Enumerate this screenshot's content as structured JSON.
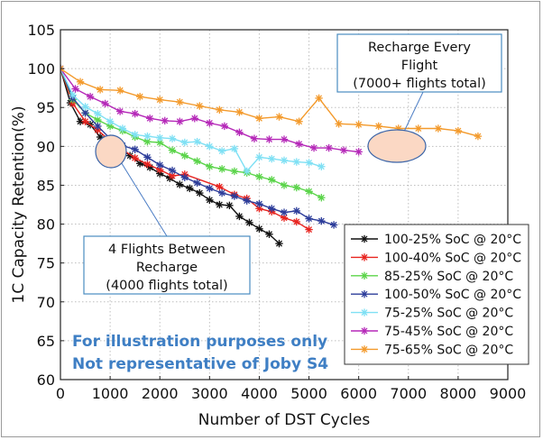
{
  "chart_data": {
    "type": "line",
    "xlabel": "Number of DST Cycles",
    "ylabel": "1C Capacity Retention(%)",
    "xlim": [
      0,
      9000
    ],
    "ylim": [
      60,
      105
    ],
    "xticks": [
      "0",
      "1000",
      "2000",
      "3000",
      "4000",
      "5000",
      "6000",
      "7000",
      "8000",
      "9000"
    ],
    "yticks": [
      "60",
      "65",
      "70",
      "75",
      "80",
      "85",
      "90",
      "95",
      "100",
      "105"
    ],
    "grid": true,
    "legend_position": "bottom-right",
    "series": [
      {
        "name": "100-25% SoC @ 20°C",
        "color": "#111111",
        "x": [
          0,
          200,
          400,
          600,
          800,
          1000,
          1200,
          1400,
          1600,
          1800,
          2000,
          2200,
          2400,
          2600,
          2800,
          3000,
          3200,
          3400,
          3600,
          3800,
          4000,
          4200,
          4400
        ],
        "y": [
          100,
          95.6,
          93.2,
          92.8,
          91.2,
          90.2,
          89.7,
          88.8,
          87.8,
          87.3,
          86.5,
          85.9,
          85.1,
          84.6,
          84.0,
          83.1,
          82.5,
          82.4,
          81.0,
          80.2,
          79.4,
          78.7,
          77.5
        ]
      },
      {
        "name": "100-40% SoC @ 20°C",
        "color": "#e8241f",
        "x": [
          0,
          250,
          500,
          750,
          1000,
          1250,
          1500,
          1750,
          2000,
          2250,
          2500,
          3200,
          3500,
          3750,
          4000,
          4250,
          4500,
          4750,
          5000
        ],
        "y": [
          100,
          95.5,
          93.2,
          92.1,
          90.7,
          89.6,
          88.5,
          87.7,
          87.0,
          86.2,
          86.4,
          84.8,
          83.8,
          83.3,
          82.0,
          81.6,
          80.8,
          80.3,
          79.3
        ]
      },
      {
        "name": "85-25% SoC @ 20°C",
        "color": "#5bd44a",
        "x": [
          0,
          250,
          500,
          750,
          1000,
          1250,
          1500,
          1750,
          2000,
          2250,
          2500,
          2750,
          3000,
          3250,
          3500,
          3750,
          4000,
          4250,
          4500,
          4750,
          5000,
          5250
        ],
        "y": [
          100,
          96.0,
          94.3,
          93.4,
          92.6,
          92.0,
          91.2,
          90.6,
          90.5,
          89.5,
          88.8,
          88.1,
          87.4,
          87.1,
          86.8,
          86.6,
          86.1,
          85.7,
          85.0,
          84.7,
          84.2,
          83.4
        ]
      },
      {
        "name": "100-50% SoC @ 20°C",
        "color": "#2d3d9a",
        "x": [
          0,
          250,
          500,
          750,
          1000,
          1250,
          1500,
          1750,
          2000,
          2250,
          2500,
          2750,
          3000,
          3250,
          3500,
          3750,
          4000,
          4250,
          4500,
          4750,
          5000,
          5250,
          5500
        ],
        "y": [
          100,
          96.2,
          94.3,
          92.6,
          91.0,
          90.1,
          89.6,
          88.6,
          87.6,
          86.9,
          86.0,
          85.3,
          84.6,
          84.0,
          83.6,
          83.0,
          82.6,
          82.0,
          81.5,
          81.7,
          80.7,
          80.4,
          79.9
        ]
      },
      {
        "name": "75-25% SoC @ 20°C",
        "color": "#7fe0f4",
        "x": [
          0,
          250,
          500,
          750,
          1000,
          1250,
          1500,
          1750,
          2000,
          2250,
          2500,
          2750,
          3000,
          3250,
          3500,
          3750,
          4000,
          4250,
          4500,
          4750,
          5000,
          5250
        ],
        "y": [
          100,
          96.6,
          95.1,
          94.2,
          93.2,
          92.3,
          91.5,
          91.3,
          91.1,
          91.0,
          90.5,
          90.6,
          90.0,
          89.4,
          89.7,
          86.8,
          88.6,
          88.4,
          88.2,
          88.0,
          87.9,
          87.4
        ]
      },
      {
        "name": "75-45% SoC @ 20°C",
        "color": "#b528b8",
        "x": [
          0,
          300,
          600,
          900,
          1200,
          1500,
          1800,
          2100,
          2400,
          2700,
          3000,
          3300,
          3600,
          3900,
          4200,
          4500,
          4800,
          5100,
          5400,
          5700,
          6000
        ],
        "y": [
          100,
          97.4,
          96.4,
          95.5,
          94.5,
          94.2,
          93.6,
          93.3,
          93.2,
          93.6,
          93.0,
          92.6,
          91.8,
          91.0,
          90.9,
          90.9,
          90.3,
          89.8,
          89.8,
          89.5,
          89.3
        ]
      },
      {
        "name": "75-65% SoC @ 20°C",
        "color": "#f39a2c",
        "x": [
          0,
          400,
          800,
          1200,
          1600,
          2000,
          2400,
          2800,
          3200,
          3600,
          4000,
          4400,
          4800,
          5200,
          5600,
          6000,
          6400,
          6800,
          7200,
          7600,
          8000,
          8400
        ],
        "y": [
          100,
          98.3,
          97.3,
          97.2,
          96.4,
          96.0,
          95.7,
          95.2,
          94.7,
          94.4,
          93.6,
          93.8,
          93.2,
          96.2,
          92.9,
          92.8,
          92.6,
          92.3,
          92.3,
          92.3,
          92.0,
          91.3
        ]
      }
    ],
    "annotations": [
      {
        "text_lines": [
          "Recharge Every",
          "Flight",
          "(7000+ flights total)"
        ]
      },
      {
        "text_lines": [
          "4 Flights Between",
          "Recharge",
          "(4000 flights total)"
        ]
      }
    ],
    "watermark": [
      "For illustration purposes only",
      "Not representative of Joby S4"
    ]
  }
}
